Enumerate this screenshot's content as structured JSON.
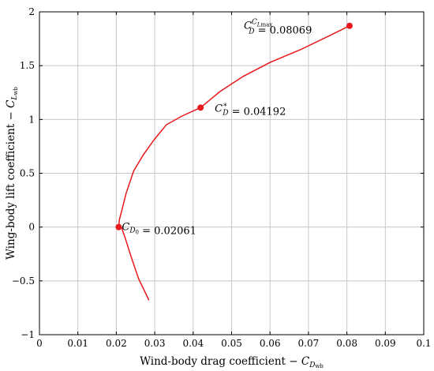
{
  "chart_data": {
    "type": "line",
    "xlim": [
      0,
      0.1
    ],
    "ylim": [
      -1,
      2
    ],
    "grid": true,
    "x_ticks": [
      0,
      0.01,
      0.02,
      0.03,
      0.04,
      0.05,
      0.06,
      0.07,
      0.08,
      0.09,
      0.1
    ],
    "x_tick_labels": [
      "0",
      "0.01",
      "0.02",
      "0.03",
      "0.04",
      "0.05",
      "0.06",
      "0.07",
      "0.08",
      "0.09",
      "0.1"
    ],
    "y_ticks": [
      -1,
      -0.5,
      0,
      0.5,
      1,
      1.5,
      2
    ],
    "y_tick_labels": [
      "−1",
      "−0.5",
      "0",
      "0.5",
      "1",
      "1.5",
      "2"
    ],
    "xlabel": {
      "text": "Wind-body drag coefficient − ",
      "sym": "C",
      "sub": "D",
      "subsub": "wb"
    },
    "ylabel": {
      "text": "Wing-body lift coefficient − ",
      "sym": "C",
      "sub": "L",
      "subsub": "wb"
    },
    "series": [
      {
        "color": "#e8191c",
        "x": [
          0.0285,
          0.0258,
          0.0238,
          0.0223,
          0.0213,
          0.0207,
          0.02061,
          0.0208,
          0.0214,
          0.0226,
          0.0245,
          0.027,
          0.0298,
          0.033,
          0.037,
          0.04192,
          0.047,
          0.053,
          0.06,
          0.068,
          0.075,
          0.08069
        ],
        "y": [
          -0.68,
          -0.48,
          -0.27,
          -0.1,
          0.0,
          0.0,
          0.0,
          0.07,
          0.15,
          0.32,
          0.52,
          0.67,
          0.81,
          0.95,
          1.03,
          1.11,
          1.26,
          1.4,
          1.53,
          1.65,
          1.77,
          1.87
        ]
      }
    ],
    "annotations": [
      {
        "x": 0.02061,
        "y": 0.0,
        "sym": "C",
        "sub": "D",
        "subsub": "0",
        "text": " = 0.02061"
      },
      {
        "x": 0.04192,
        "y": 1.11,
        "sym": "C",
        "sup": "∗",
        "sub": "D",
        "text": " = 0.04192"
      },
      {
        "x": 0.08069,
        "y": 1.87,
        "sym": "C",
        "sup": "C",
        "supsub": "L",
        "supsubsub": "max",
        "sub": "D",
        "text": " = 0.08069"
      }
    ]
  }
}
